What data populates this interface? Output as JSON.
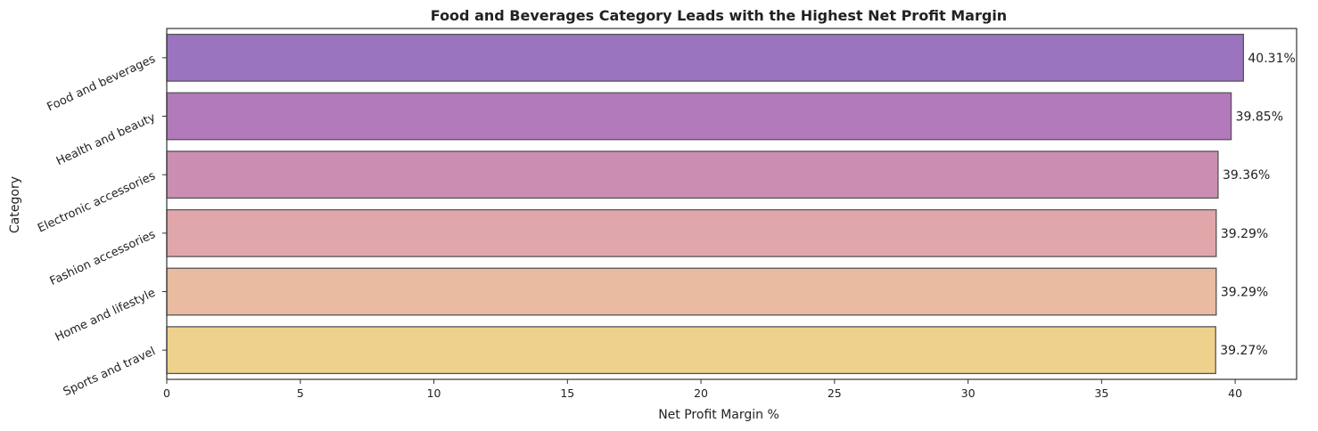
{
  "chart_data": {
    "type": "bar",
    "orientation": "horizontal",
    "title": "Food and Beverages Category Leads with the Highest Net Profit Margin",
    "xlabel": "Net Profit Margin %",
    "ylabel": "Category",
    "xlim": [
      0,
      42.3
    ],
    "xticks": [
      0,
      5,
      10,
      15,
      20,
      25,
      30,
      35,
      40
    ],
    "grid": false,
    "categories": [
      "Food and beverages",
      "Health and beauty",
      "Electronic accessories",
      "Fashion accessories",
      "Home and lifestyle",
      "Sports and travel"
    ],
    "values": [
      40.31,
      39.85,
      39.36,
      39.29,
      39.29,
      39.27
    ],
    "data_labels": [
      "40.31%",
      "39.85%",
      "39.36%",
      "39.29%",
      "39.29%",
      "39.27%"
    ],
    "colors": [
      "#9a74bf",
      "#b279bb",
      "#cb8eb3",
      "#e0a7aa",
      "#e9bba0",
      "#eed18c"
    ],
    "edge_color": "#555555"
  }
}
